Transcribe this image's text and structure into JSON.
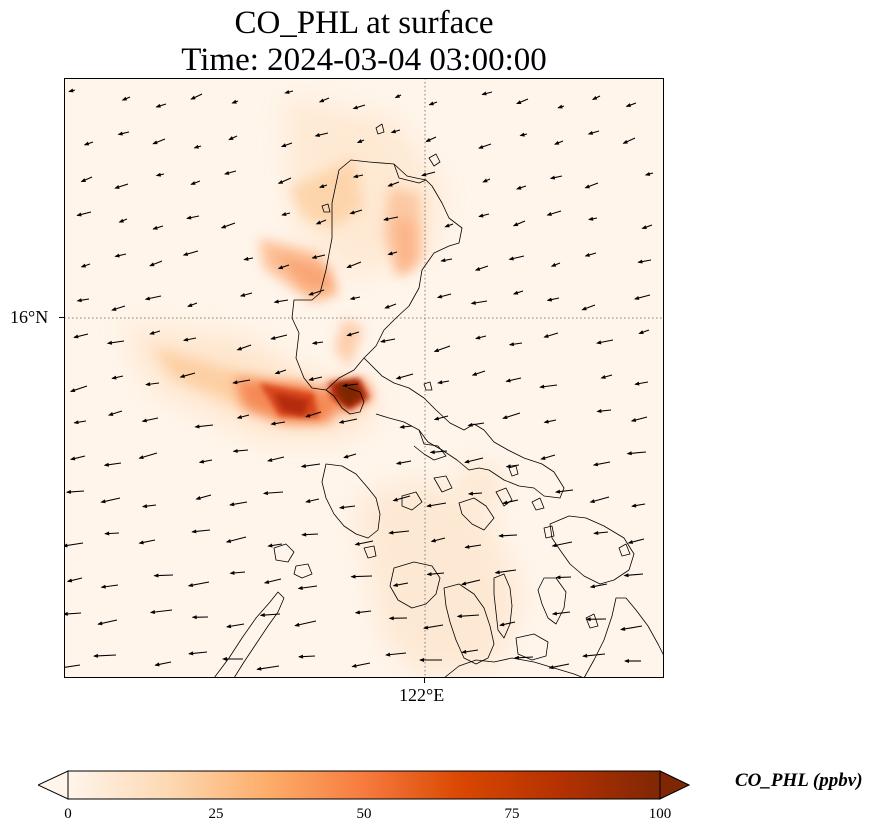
{
  "title": {
    "line1": "CO_PHL at surface",
    "line2": "Time: 2024-03-04 03:00:00"
  },
  "map": {
    "lat_label": "16°N",
    "lon_label": "122°E"
  },
  "colorbar": {
    "label": "CO_PHL (ppbv)",
    "ticks": [
      "0",
      "25",
      "50",
      "75",
      "100"
    ],
    "min": 0,
    "max": 100,
    "extend": "both",
    "colormap": [
      "#fff5eb",
      "#fdd9b4",
      "#fdae6b",
      "#f67b3e",
      "#d94701",
      "#b33101",
      "#7f2704"
    ]
  },
  "colors": {
    "gridline": "#7f7f7f",
    "coastline": "#000000",
    "arrow": "#000000"
  },
  "icons": {
    "wind_vector": "arrow-left-icon"
  }
}
